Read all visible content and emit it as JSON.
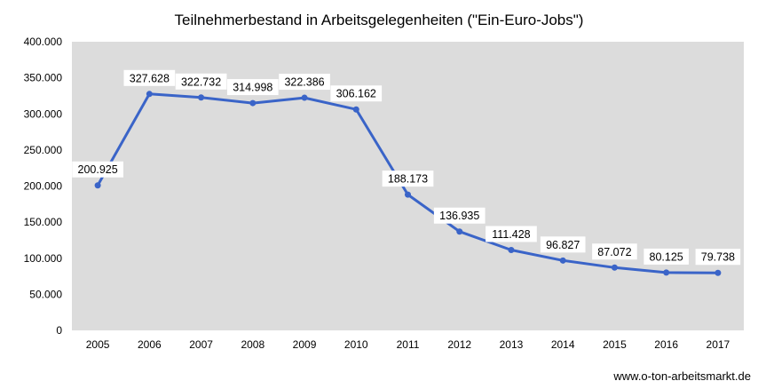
{
  "chart_data": {
    "type": "line",
    "title": "Teilnehmerbestand in Arbeitsgelegenheiten (\"Ein-Euro-Jobs\")",
    "xlabel": "",
    "ylabel": "",
    "categories": [
      "2005",
      "2006",
      "2007",
      "2008",
      "2009",
      "2010",
      "2011",
      "2012",
      "2013",
      "2014",
      "2015",
      "2016",
      "2017"
    ],
    "series": [
      {
        "values": [
          200925,
          327628,
          322732,
          314998,
          322386,
          306162,
          188173,
          136935,
          111428,
          96827,
          87072,
          80125,
          79738
        ],
        "labels": [
          "200.925",
          "327.628",
          "322.732",
          "314.998",
          "322.386",
          "306.162",
          "188.173",
          "136.935",
          "111.428",
          "96.827",
          "87.072",
          "80.125",
          "79.738"
        ]
      }
    ],
    "ylim": [
      0,
      400000
    ],
    "yticks": [
      0,
      50000,
      100000,
      150000,
      200000,
      250000,
      300000,
      350000,
      400000
    ],
    "ytick_labels": [
      "0",
      "50.000",
      "100.000",
      "150.000",
      "200.000",
      "250.000",
      "300.000",
      "350.000",
      "400.000"
    ],
    "grid": false,
    "legend": "none",
    "colors": {
      "line": "#3a64c8",
      "plot_bg": "#dcdcdc",
      "label_bg": "#ffffff"
    }
  },
  "footer": {
    "source": "www.o-ton-arbeitsmarkt.de"
  }
}
